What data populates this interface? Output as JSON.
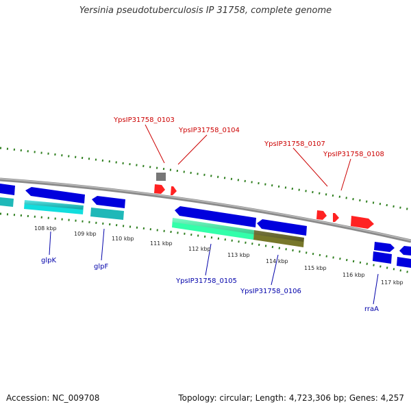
{
  "title": "Yersinia pseudotuberculosis IP 31758, complete genome",
  "accession_text": "Accession: NC_009708",
  "summary_text": "Topology: circular; Length: 4,723,306 bp; Genes: 4,257",
  "colors": {
    "backbone": "#8a8a8a",
    "forward_gene": "#0000dd",
    "reverse_gene": "#0000dd",
    "cds_cyan": "#11dddd",
    "cds_teal": "#1fb8b8",
    "cds_green": "#33ffaa",
    "cds_olive": "#77772a",
    "pseudo_gray": "#777777",
    "rna_red": "#ff2222",
    "tick": "#2f7f1f",
    "label_red": "#cc0000",
    "label_blue": "#0000aa"
  },
  "kbp_labels": [
    "108 kbp",
    "109 kbp",
    "110 kbp",
    "111 kbp",
    "112 kbp",
    "113 kbp",
    "114 kbp",
    "115 kbp",
    "116 kbp",
    "117 kbp"
  ],
  "red_labels": [
    "YpsIP31758_0103",
    "YpsIP31758_0104",
    "YpsIP31758_0107",
    "YpsIP31758_0108"
  ],
  "blue_labels": [
    "glpK",
    "glpF",
    "YpsIP31758_0105",
    "YpsIP31758_0106",
    "rraA"
  ]
}
